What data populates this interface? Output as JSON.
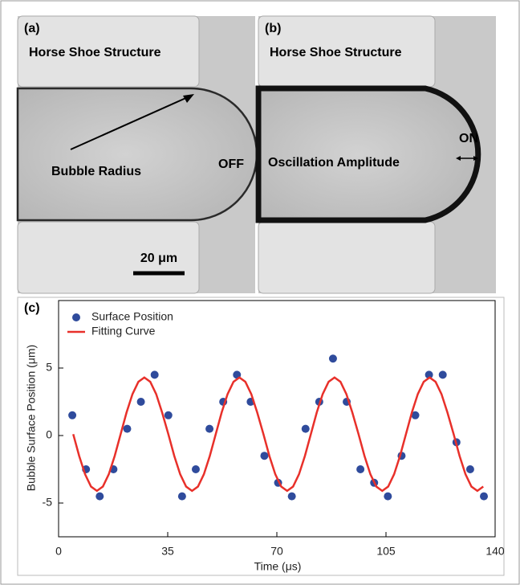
{
  "panels": [
    {
      "label": "(a)",
      "structure": "Horse Shoe Structure",
      "annotation": "Bubble Radius",
      "state": "OFF",
      "scale_bar": "20 μm"
    },
    {
      "label": "(b)",
      "structure": "Horse Shoe Structure",
      "annotation": "Oscillation Amplitude",
      "state": "ON"
    }
  ],
  "chart_data": {
    "type": "scatter",
    "panel_label": "(c)",
    "x_label": "Time (μs)",
    "y_label": "Bubble Surface Position (μm)",
    "xlim": [
      0,
      140
    ],
    "xticks": [
      0,
      35,
      70,
      105,
      140
    ],
    "ylim": [
      -7.5,
      10
    ],
    "yticks": [
      -5,
      0,
      5
    ],
    "legend": "upper left",
    "series": [
      {
        "name": "Surface Position",
        "type": "scatter",
        "color": "#2f4b9c",
        "x": [
          4.4,
          8.8,
          13.2,
          17.6,
          22.0,
          26.4,
          30.8,
          35.2,
          39.6,
          44.0,
          48.4,
          52.8,
          57.2,
          61.6,
          66.0,
          70.4,
          74.8,
          79.2,
          83.6,
          88.0,
          92.4,
          96.8,
          101.2,
          105.6,
          110.0,
          114.4,
          118.8,
          123.2,
          127.6,
          132.0,
          136.4
        ],
        "values": [
          1.5,
          -2.5,
          -4.5,
          -2.5,
          0.5,
          2.5,
          4.5,
          1.5,
          -4.5,
          -2.5,
          0.5,
          2.5,
          4.5,
          2.5,
          -1.5,
          -3.5,
          -4.5,
          0.5,
          2.5,
          5.7,
          2.5,
          -2.5,
          -3.5,
          -4.5,
          -1.5,
          1.5,
          4.5,
          4.5,
          -0.5,
          -2.5,
          -4.5
        ]
      },
      {
        "name": "Fitting Curve",
        "type": "line",
        "color": "#e8302a",
        "x": [
          4.7,
          6.6,
          8.5,
          10.4,
          12.3,
          14.2,
          16.1,
          18,
          19.9,
          21.8,
          23.7,
          25.6,
          27.5,
          29.4,
          31.3,
          33.2,
          35.2,
          37.1,
          39,
          40.9,
          42.8,
          44.7,
          46.6,
          48.5,
          50.4,
          52.3,
          54.2,
          56.1,
          58,
          59.9,
          61.8,
          63.7,
          65.7,
          67.6,
          69.5,
          71.4,
          73.3,
          75.2,
          77.1,
          79,
          80.9,
          82.8,
          84.7,
          86.6,
          88.5,
          90.4,
          92.3,
          94.2,
          96.2,
          98.1,
          100,
          101.9,
          103.8,
          105.7,
          107.6,
          109.5,
          111.4,
          113.3,
          115.2,
          117.1,
          119,
          120.9,
          122.8,
          124.7,
          126.7,
          128.6,
          130.5,
          132.4,
          134.3,
          136.2
        ],
        "values": [
          0.1,
          -1.51,
          -2.87,
          -3.78,
          -4.1,
          -3.78,
          -2.87,
          -1.51,
          0.1,
          1.71,
          3.07,
          3.98,
          4.3,
          3.98,
          3.07,
          1.71,
          0.1,
          -1.51,
          -2.87,
          -3.78,
          -4.1,
          -3.78,
          -2.87,
          -1.51,
          0.1,
          1.71,
          3.07,
          3.98,
          4.3,
          3.98,
          3.07,
          1.71,
          0.1,
          -1.51,
          -2.87,
          -3.78,
          -4.1,
          -3.78,
          -2.87,
          -1.51,
          0.1,
          1.71,
          3.07,
          3.98,
          4.3,
          3.98,
          3.07,
          1.71,
          0.1,
          -1.51,
          -2.87,
          -3.78,
          -4.1,
          -3.78,
          -2.87,
          -1.51,
          0.1,
          1.71,
          3.07,
          3.98,
          4.3,
          3.98,
          3.07,
          1.71,
          0.1,
          -1.51,
          -2.87,
          -3.78,
          -4.1,
          -3.78
        ]
      }
    ]
  }
}
